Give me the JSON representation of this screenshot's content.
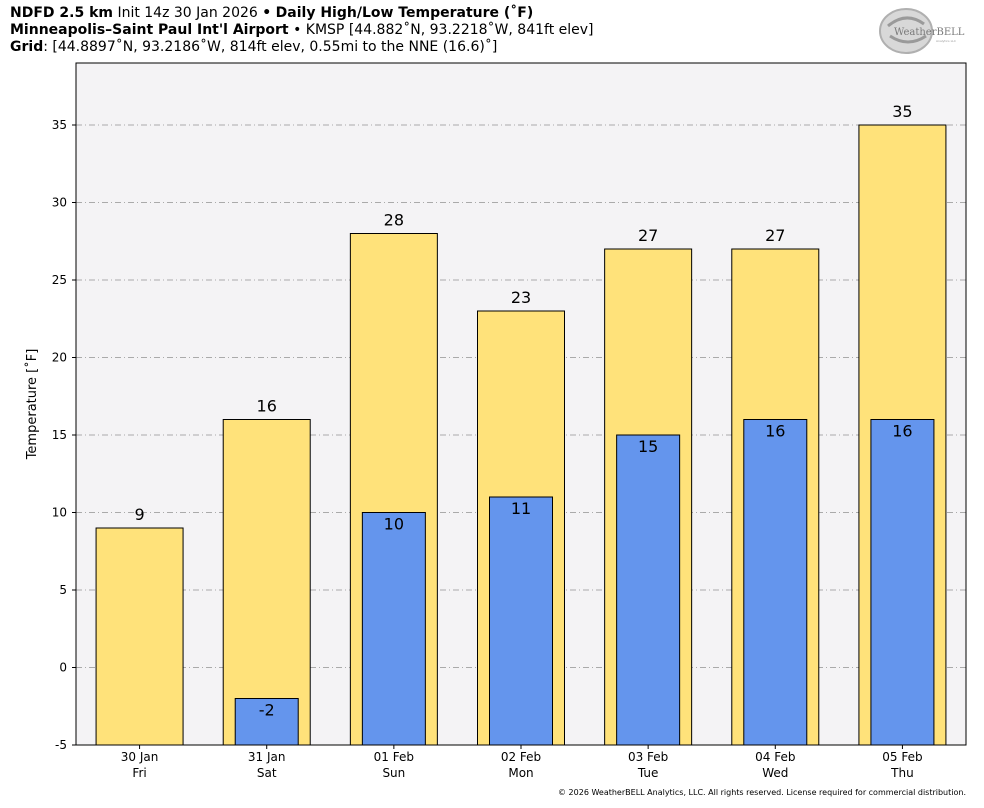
{
  "header": {
    "line1_bold": "NDFD 2.5 km",
    "line1_init": "Init 14z 30 Jan 2026",
    "line1_sep": "•",
    "line1_title": "Daily High/Low Temperature (˚F)",
    "line2_bold": "Minneapolis–Saint Paul Int'l Airport",
    "line2_rest": "• KMSP [44.882˚N, 93.2218˚W, 841ft elev]",
    "line3_bold": "Grid",
    "line3_rest": ": [44.8897˚N, 93.2186˚W, 814ft elev, 0.55mi to the NNE (16.6)˚]"
  },
  "logo": {
    "text": "WeatherBELL",
    "subtext": "Analytics LLC"
  },
  "footer": "© 2026 WeatherBELL Analytics, LLC. All rights reserved. License required for commercial distribution.",
  "colors": {
    "high": "#FFE27A",
    "low": "#6495ED",
    "plot_bg": "#F4F3F5",
    "grid": "#AAAAAA"
  },
  "chart_data": {
    "type": "bar",
    "ylabel": "Temperature [˚F]",
    "ylim": [
      -5,
      39
    ],
    "yticks": [
      -5,
      0,
      5,
      10,
      15,
      20,
      25,
      30,
      35
    ],
    "grid": true,
    "categories": [
      [
        "30 Jan",
        "Fri"
      ],
      [
        "31 Jan",
        "Sat"
      ],
      [
        "01 Feb",
        "Sun"
      ],
      [
        "02 Feb",
        "Mon"
      ],
      [
        "03 Feb",
        "Tue"
      ],
      [
        "04 Feb",
        "Wed"
      ],
      [
        "05 Feb",
        "Thu"
      ]
    ],
    "series": [
      {
        "key": "high",
        "values": [
          9,
          16,
          28,
          23,
          27,
          27,
          35
        ]
      },
      {
        "key": "low",
        "values": [
          null,
          -2,
          10,
          11,
          15,
          16,
          16
        ]
      }
    ]
  }
}
